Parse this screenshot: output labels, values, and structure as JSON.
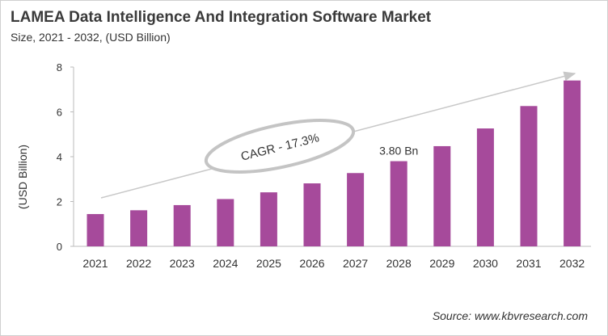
{
  "title": "LAMEA Data Intelligence And Integration Software Market",
  "subtitle": "Size, 2021 - 2032, (USD Billion)",
  "source": "Source: www.kbvresearch.com",
  "colors": {
    "bar": "#a64a9b"
  },
  "chart_data": {
    "type": "bar",
    "categories": [
      "2021",
      "2022",
      "2023",
      "2024",
      "2025",
      "2026",
      "2027",
      "2028",
      "2029",
      "2030",
      "2031",
      "2032"
    ],
    "values": [
      1.44,
      1.61,
      1.84,
      2.11,
      2.41,
      2.81,
      3.27,
      3.8,
      4.47,
      5.26,
      6.26,
      7.4
    ],
    "ylabel": "(USD Billion)",
    "ylim": [
      0,
      8
    ],
    "yticks": [
      "0",
      "2",
      "4",
      "6",
      "8"
    ],
    "grid": false,
    "annotations": {
      "data_label": "3.80 Bn",
      "data_label_category": "2028",
      "cagr": "CAGR - 17.3%"
    }
  }
}
